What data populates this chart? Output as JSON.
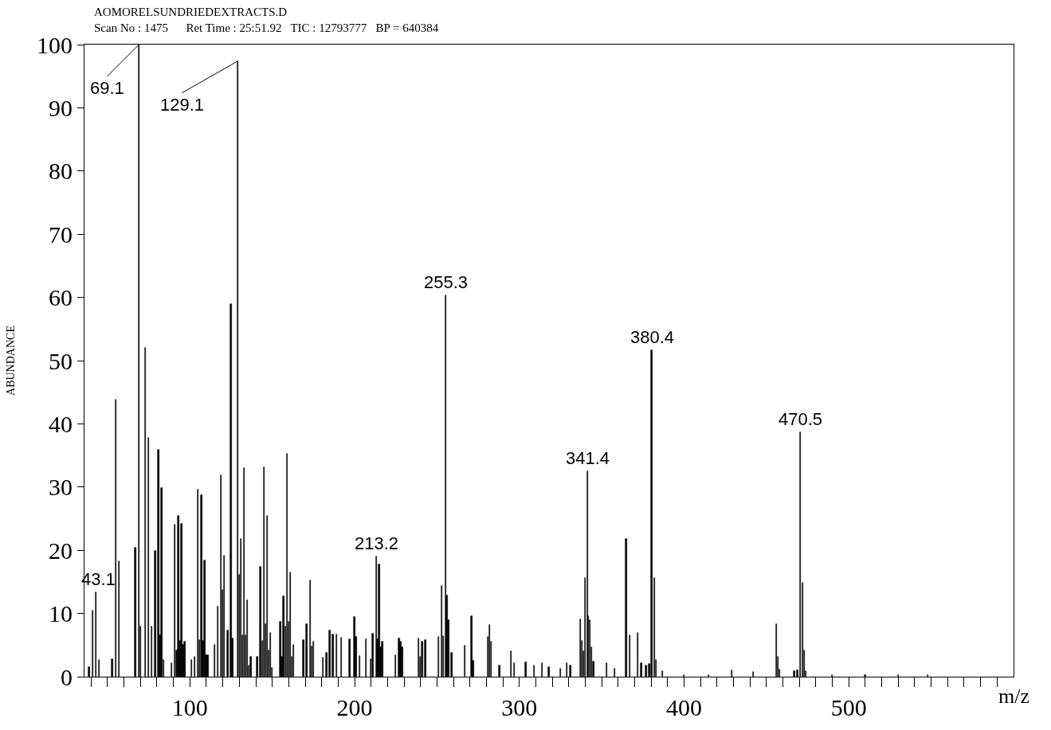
{
  "chart_data": {
    "type": "bar",
    "title": "AOMORELSUNDRIEDEXTRACTS.D",
    "subtitle": "Scan No : 1475      Ret Time : 25:51.92   TIC : 12793777   BP = 640384",
    "xlabel": "m/z",
    "ylabel": "ABUNDANCE",
    "x": [
      39,
      41,
      43.1,
      45,
      53,
      55,
      57,
      67,
      69.1,
      70,
      73,
      75,
      77,
      79,
      81,
      82,
      83,
      84,
      89,
      91,
      92,
      93,
      94,
      95,
      96,
      97,
      101,
      103,
      105,
      106,
      107,
      108,
      109,
      110,
      111,
      115,
      117,
      119,
      120,
      121,
      123,
      125,
      126,
      129.1,
      130,
      131,
      132,
      133,
      134,
      135,
      136,
      137,
      141,
      143,
      144,
      145,
      146,
      147,
      148,
      149,
      150,
      155,
      156,
      157,
      158,
      159,
      160,
      161,
      162,
      163,
      169,
      171,
      173,
      174,
      175,
      181,
      183,
      185,
      187,
      189,
      192,
      197,
      200,
      201,
      203,
      207,
      210,
      211,
      213.2,
      214,
      215,
      216,
      217,
      225,
      227,
      228,
      229,
      239,
      240,
      241,
      243,
      251,
      253,
      254,
      255.3,
      256,
      257,
      259,
      267,
      271,
      272,
      281,
      282,
      283,
      288,
      295,
      297,
      304,
      309,
      314,
      318,
      325,
      329,
      331,
      337,
      338,
      339,
      340,
      341.4,
      342,
      343,
      344,
      345,
      353,
      358,
      365,
      367,
      372,
      374,
      377,
      379,
      380.4,
      382,
      383,
      387,
      400,
      415,
      429,
      442,
      456,
      457,
      458,
      467,
      469,
      470.5,
      472,
      473,
      474,
      490,
      510,
      530,
      548
    ],
    "values": [
      1.5,
      10.4,
      13.3,
      2.6,
      2.8,
      43.8,
      18.3,
      20.4,
      100,
      7.9,
      52,
      37.8,
      7.9,
      19.9,
      35.9,
      6.5,
      29.9,
      2.6,
      2.1,
      24.1,
      4.2,
      25.5,
      5.7,
      24.2,
      5,
      5.6,
      2.7,
      3.2,
      29.6,
      5.8,
      28.7,
      5.7,
      18.4,
      3.4,
      3.4,
      5,
      11.1,
      31.9,
      13.7,
      19.2,
      7.3,
      59,
      6,
      97.4,
      16.1,
      21.8,
      6.6,
      33,
      6.6,
      12.1,
      1.8,
      3.2,
      3.2,
      17.4,
      5.7,
      33.1,
      8.3,
      25.5,
      4.2,
      6.9,
      1.4,
      8.7,
      3.2,
      12.7,
      7.9,
      35.3,
      8.7,
      16.5,
      3.2,
      5,
      5.8,
      8.3,
      15.3,
      4.8,
      5.6,
      3,
      3.8,
      7.3,
      6.7,
      6.7,
      6.2,
      5.9,
      9.4,
      6.3,
      3.3,
      5.9,
      2.8,
      6.8,
      19,
      5.9,
      17.8,
      4.6,
      5.5,
      3.4,
      6.1,
      5.6,
      4.7,
      6,
      3.1,
      5.5,
      5.8,
      6.3,
      14.3,
      6.4,
      60.3,
      12.9,
      9,
      3.8,
      4.9,
      9.6,
      2.5,
      6.3,
      8.2,
      5.5,
      1.8,
      4,
      2.1,
      2.3,
      1.8,
      2.2,
      1.5,
      1.3,
      2.2,
      1.8,
      9.1,
      5.7,
      4,
      15.6,
      32.5,
      9.6,
      9,
      4.7,
      2.4,
      2.2,
      1.3,
      21.8,
      6.5,
      6.9,
      2.2,
      1.8,
      2,
      51.7,
      15.6,
      2.7,
      0.9,
      0.3,
      0.3,
      1,
      0.7,
      8.3,
      3.2,
      1.1,
      0.9,
      1,
      38.7,
      14.8,
      4.1,
      0.9,
      0.3,
      0.3,
      0.3,
      0.3
    ],
    "color": "#000000",
    "xlim": [
      36,
      600
    ],
    "xticks": [
      {
        "value": 40,
        "label": null
      },
      {
        "value": 50,
        "label": null
      },
      {
        "value": 60,
        "label": null
      },
      {
        "value": 70,
        "label": null
      },
      {
        "value": 80,
        "label": null
      },
      {
        "value": 90,
        "label": null
      },
      100,
      {
        "value": 110,
        "label": null
      },
      {
        "value": 120,
        "label": null
      },
      {
        "value": 130,
        "label": null
      },
      {
        "value": 140,
        "label": null
      },
      {
        "value": 150,
        "label": null
      },
      {
        "value": 160,
        "label": null
      },
      {
        "value": 170,
        "label": null
      },
      {
        "value": 180,
        "label": null
      },
      {
        "value": 190,
        "label": null
      },
      200,
      {
        "value": 210,
        "label": null
      },
      {
        "value": 220,
        "label": null
      },
      {
        "value": 230,
        "label": null
      },
      {
        "value": 240,
        "label": null
      },
      {
        "value": 250,
        "label": null
      },
      {
        "value": 260,
        "label": null
      },
      {
        "value": 270,
        "label": null
      },
      {
        "value": 280,
        "label": null
      },
      {
        "value": 290,
        "label": null
      },
      300,
      {
        "value": 310,
        "label": null
      },
      {
        "value": 320,
        "label": null
      },
      {
        "value": 330,
        "label": null
      },
      {
        "value": 340,
        "label": null
      },
      {
        "value": 350,
        "label": null
      },
      {
        "value": 360,
        "label": null
      },
      {
        "value": 370,
        "label": null
      },
      {
        "value": 380,
        "label": null
      },
      {
        "value": 390,
        "label": null
      },
      400,
      {
        "value": 410,
        "label": null
      },
      {
        "value": 420,
        "label": null
      },
      {
        "value": 430,
        "label": null
      },
      {
        "value": 440,
        "label": null
      },
      {
        "value": 450,
        "label": null
      },
      {
        "value": 460,
        "label": null
      },
      {
        "value": 470,
        "label": null
      },
      {
        "value": 480,
        "label": null
      },
      {
        "value": 490,
        "label": null
      },
      500,
      {
        "value": 510,
        "label": null
      },
      {
        "value": 520,
        "label": null
      },
      {
        "value": 530,
        "label": null
      },
      {
        "value": 540,
        "label": null
      },
      {
        "value": 550,
        "label": null
      },
      {
        "value": 560,
        "label": null
      },
      {
        "value": 570,
        "label": null
      },
      {
        "value": 580,
        "label": null
      },
      {
        "value": 590,
        "label": null
      }
    ],
    "ylim": [
      0,
      100
    ],
    "yticks": [
      0,
      10,
      20,
      30,
      40,
      50,
      60,
      70,
      80,
      90,
      100
    ],
    "annotations": [
      {
        "text": "43.1",
        "x": 43.1,
        "y": 13.3
      },
      {
        "text": "69.1",
        "x": 69.1,
        "y": 100
      },
      {
        "text": "129.1",
        "x": 129.1,
        "y": 97.4
      },
      {
        "text": "213.2",
        "x": 213.2,
        "y": 19
      },
      {
        "text": "255.3",
        "x": 255.3,
        "y": 60.3
      },
      {
        "text": "341.4",
        "x": 341.4,
        "y": 32.5
      },
      {
        "text": "380.4",
        "x": 380.4,
        "y": 51.7
      },
      {
        "text": "470.5",
        "x": 470.5,
        "y": 38.7
      }
    ]
  }
}
